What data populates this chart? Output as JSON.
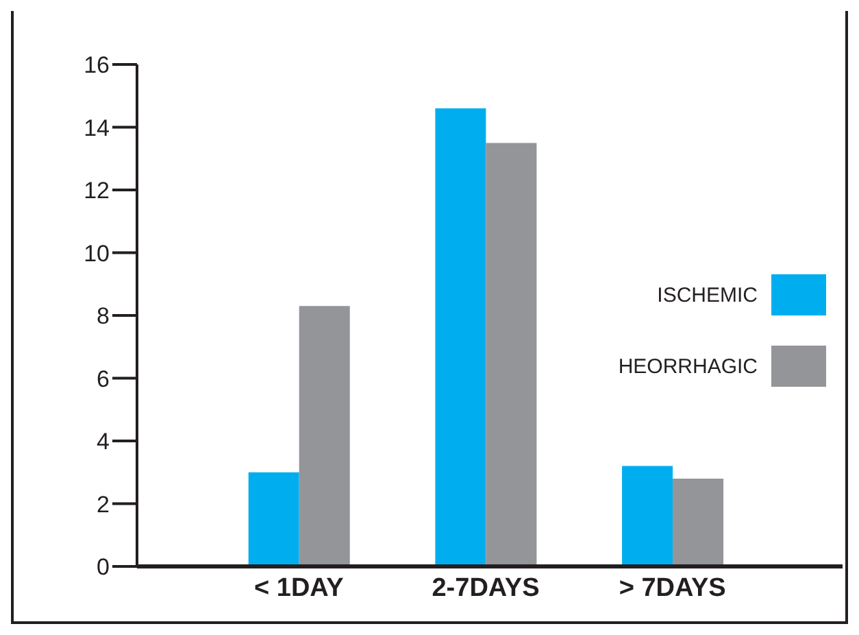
{
  "chart_data": {
    "type": "bar",
    "categories": [
      "< 1DAY",
      "2-7DAYS",
      "> 7DAYS"
    ],
    "series": [
      {
        "name": "ISCHEMIC",
        "color": "#00aeef",
        "values": [
          3.0,
          14.6,
          3.2
        ]
      },
      {
        "name": "HEORRHAGIC",
        "color": "#939598",
        "values": [
          8.3,
          13.5,
          2.8
        ]
      }
    ],
    "ylim": [
      0,
      16
    ],
    "yticks": [
      0,
      2,
      4,
      6,
      8,
      10,
      12,
      14,
      16
    ],
    "grid": false,
    "legend": "right"
  }
}
